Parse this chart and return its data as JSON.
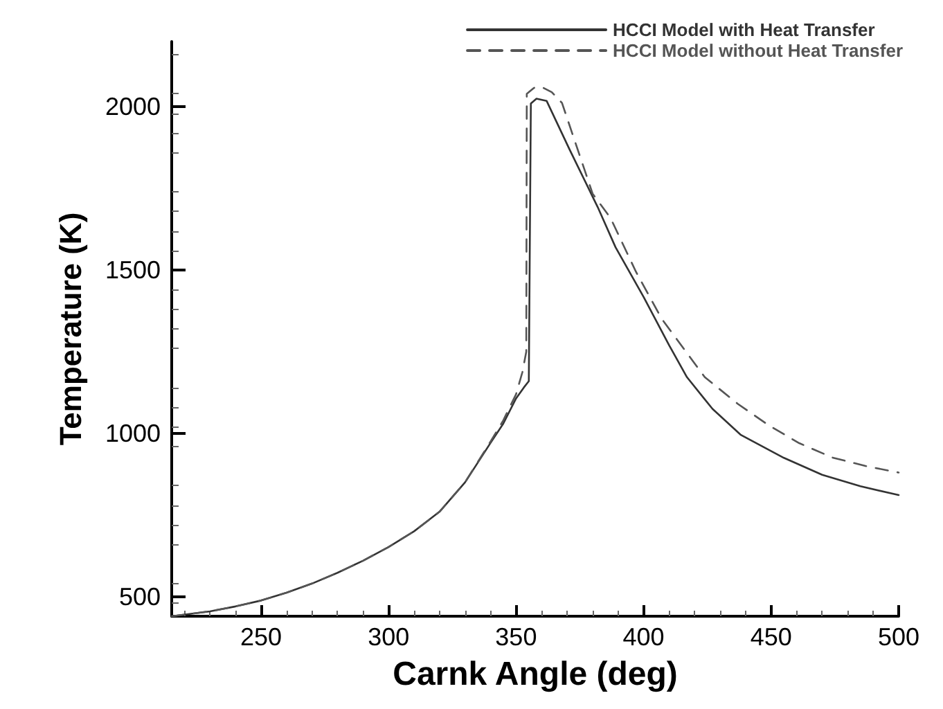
{
  "chart_data": {
    "type": "line",
    "xlabel": "Carnk Angle (deg)",
    "ylabel": "Temperature (K)",
    "xlim": [
      215,
      500
    ],
    "xticks": [
      250,
      300,
      350,
      400,
      450,
      500
    ],
    "ylim": [
      440,
      2200
    ],
    "yticks": [
      500,
      1000,
      1500,
      2000
    ],
    "grid": false,
    "legend": "top right",
    "marker": "none",
    "series": [
      {
        "name": "HCCI Model with Heat Transfer",
        "color": "#333333",
        "line_style": "solid",
        "x": [
          215,
          230,
          240,
          250,
          260,
          270,
          280,
          290,
          300,
          310,
          320,
          330,
          340,
          345,
          350,
          353,
          355,
          355.8,
          358,
          362,
          371,
          382,
          389,
          400,
          410,
          417,
          427,
          438,
          455,
          470,
          485,
          500
        ],
        "values": [
          440,
          455,
          470,
          488,
          512,
          540,
          573,
          610,
          652,
          700,
          760,
          850,
          971,
          1030,
          1107,
          1140,
          1160,
          2010,
          2025,
          2018,
          1869,
          1693,
          1570,
          1418,
          1270,
          1172,
          1075,
          996,
          925,
          873,
          838,
          811
        ]
      },
      {
        "name": "HCCI Model without Heat Transfer",
        "color": "#555555",
        "line_style": "dashed",
        "x": [
          215,
          230,
          240,
          250,
          260,
          270,
          280,
          290,
          300,
          310,
          320,
          330,
          340,
          345,
          350,
          352.5,
          354,
          354.2,
          357,
          360,
          364,
          368,
          380,
          387,
          397,
          407,
          424,
          437,
          449,
          461,
          474,
          487,
          500
        ],
        "values": [
          440,
          455,
          470,
          488,
          512,
          540,
          573,
          610,
          652,
          700,
          760,
          850,
          975,
          1040,
          1120,
          1188,
          1250,
          2040,
          2058,
          2061,
          2045,
          2012,
          1734,
          1660,
          1495,
          1352,
          1172,
          1090,
          1025,
          970,
          926,
          900,
          880
        ]
      }
    ]
  }
}
